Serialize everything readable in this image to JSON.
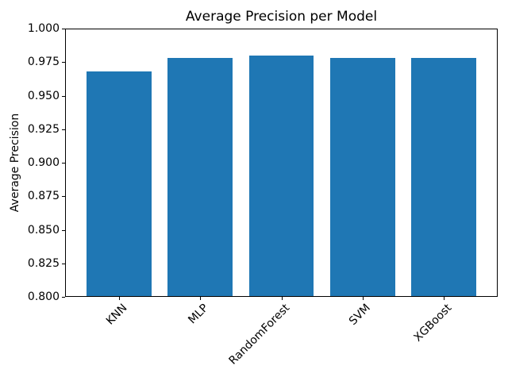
{
  "figure": {
    "title": "Average Precision per Model",
    "background_color": "#ffffff",
    "text_color": "#000000",
    "spine_color": "#000000"
  },
  "chart_data": {
    "type": "bar",
    "title": "Average Precision per Model",
    "xlabel": "",
    "ylabel": "Average Precision",
    "categories": [
      "KNN",
      "MLP",
      "RandomForest",
      "SVM",
      "XGBoost"
    ],
    "values": [
      0.968,
      0.978,
      0.98,
      0.978,
      0.978
    ],
    "ylim": [
      0.8,
      1.0
    ],
    "yticks": [
      0.8,
      0.825,
      0.85,
      0.875,
      0.9,
      0.925,
      0.95,
      0.975,
      1.0
    ],
    "ytick_labels": [
      "0.800",
      "0.825",
      "0.850",
      "0.875",
      "0.900",
      "0.925",
      "0.950",
      "0.975",
      "1.000"
    ],
    "bar_color": "#1f77b4",
    "grid": false,
    "legend_position": null,
    "x_tick_label_rotation_deg": 45
  }
}
